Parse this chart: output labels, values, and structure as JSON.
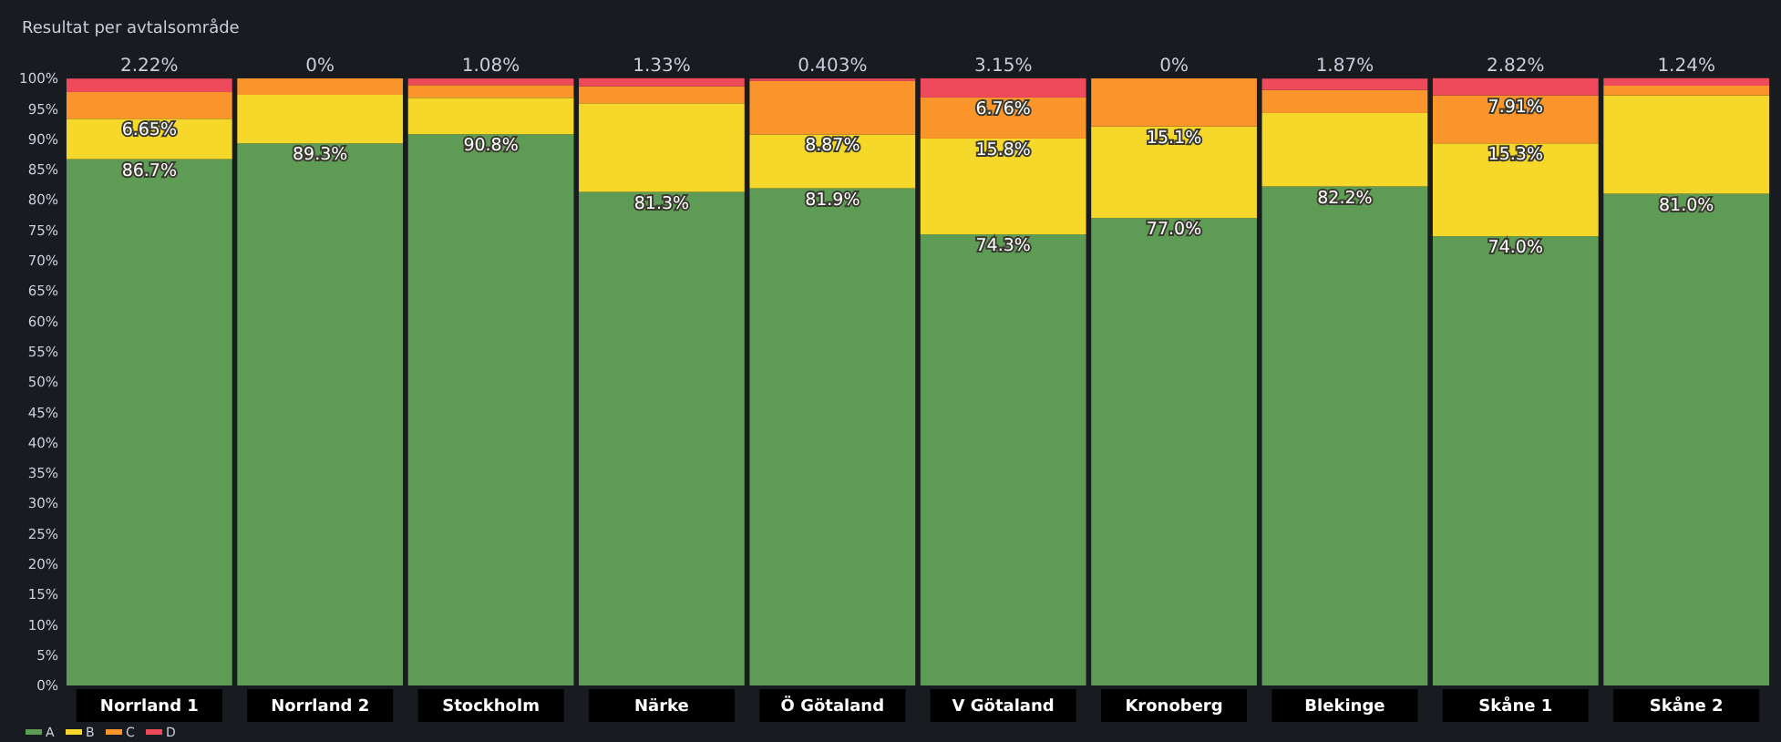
{
  "chart_data": {
    "type": "bar",
    "title": "Resultat per avtalsområde",
    "stacked": true,
    "legend": "bottom left",
    "categories": [
      "Norrland 1",
      "Norrland 2",
      "Stockholm",
      "Närke",
      "Ö Götaland",
      "V Götaland",
      "Kronoberg",
      "Blekinge",
      "Skåne 1",
      "Skåne 2"
    ],
    "ylim": [
      0,
      100
    ],
    "yticks": [
      {
        "value": 0,
        "label": "0%"
      },
      {
        "value": 5,
        "label": "5%"
      },
      {
        "value": 10,
        "label": "10%"
      },
      {
        "value": 15,
        "label": "15%"
      },
      {
        "value": 20,
        "label": "20%"
      },
      {
        "value": 25,
        "label": "25%"
      },
      {
        "value": 30,
        "label": "30%"
      },
      {
        "value": 35,
        "label": "35%"
      },
      {
        "value": 40,
        "label": "40%"
      },
      {
        "value": 45,
        "label": "45%"
      },
      {
        "value": 50,
        "label": "50%"
      },
      {
        "value": 55,
        "label": "55%"
      },
      {
        "value": 60,
        "label": "60%"
      },
      {
        "value": 65,
        "label": "65%"
      },
      {
        "value": 70,
        "label": "70%"
      },
      {
        "value": 75,
        "label": "75%"
      },
      {
        "value": 80,
        "label": "80%"
      },
      {
        "value": 85,
        "label": "85%"
      },
      {
        "value": 90,
        "label": "90%"
      },
      {
        "value": 95,
        "label": "95%"
      },
      {
        "value": 100,
        "label": "100%"
      }
    ],
    "series": [
      {
        "name": "A",
        "color": "#5e9c55",
        "values": [
          86.7,
          89.3,
          90.8,
          81.3,
          81.9,
          74.3,
          77.0,
          82.2,
          74.0,
          81.0
        ],
        "value_labels": [
          "86.7%",
          "89.3%",
          "90.8%",
          "81.3%",
          "81.9%",
          "74.3%",
          "77.0%",
          "82.2%",
          "74.0%",
          "81.0%"
        ]
      },
      {
        "name": "B",
        "color": "#f6d82a",
        "values": [
          6.65,
          8.0,
          6.0,
          14.6,
          8.87,
          15.8,
          15.1,
          12.1,
          15.3,
          16.2
        ],
        "value_labels": [
          "6.65%",
          null,
          null,
          null,
          "8.87%",
          "15.8%",
          "15.1%",
          null,
          "15.3%",
          null
        ]
      },
      {
        "name": "C",
        "color": "#f9952a",
        "values": [
          4.4,
          2.7,
          2.1,
          2.8,
          8.8,
          6.76,
          7.9,
          3.8,
          7.91,
          1.6
        ],
        "value_labels": [
          null,
          null,
          null,
          null,
          null,
          "6.76%",
          null,
          null,
          "7.91%",
          null
        ]
      },
      {
        "name": "D",
        "color": "#ee4a5c",
        "values": [
          2.22,
          0,
          1.08,
          1.33,
          0.403,
          3.15,
          0,
          1.87,
          2.82,
          1.24
        ],
        "value_labels": [
          "2.22%",
          "0%",
          "1.08%",
          "1.33%",
          "0.403%",
          "3.15%",
          "0%",
          "1.87%",
          "2.82%",
          "1.24%"
        ]
      }
    ]
  }
}
